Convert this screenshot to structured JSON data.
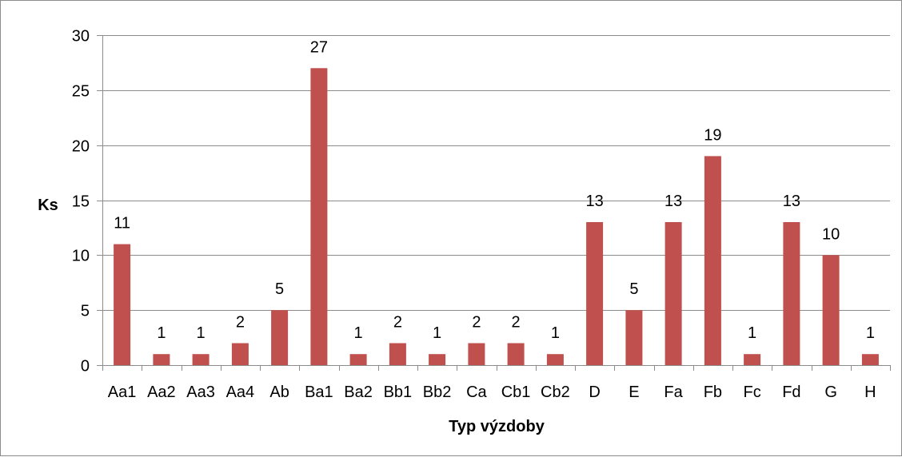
{
  "chart_data": {
    "type": "bar",
    "categories": [
      "Aa1",
      "Aa2",
      "Aa3",
      "Aa4",
      "Ab",
      "Ba1",
      "Ba2",
      "Bb1",
      "Bb2",
      "Ca",
      "Cb1",
      "Cb2",
      "D",
      "E",
      "Fa",
      "Fb",
      "Fc",
      "Fd",
      "G",
      "H"
    ],
    "values": [
      11,
      1,
      1,
      2,
      5,
      27,
      1,
      2,
      1,
      2,
      2,
      1,
      13,
      5,
      13,
      19,
      1,
      13,
      10,
      1
    ],
    "title": "",
    "xlabel": "Typ výzdoby",
    "ylabel": "Ks",
    "ylim": [
      0,
      30
    ],
    "yticks": [
      0,
      5,
      10,
      15,
      20,
      25,
      30
    ],
    "grid": true,
    "legend": "none",
    "data_labels": true,
    "bar_color": "#c0504d",
    "grid_color": "#8c8c8c"
  }
}
